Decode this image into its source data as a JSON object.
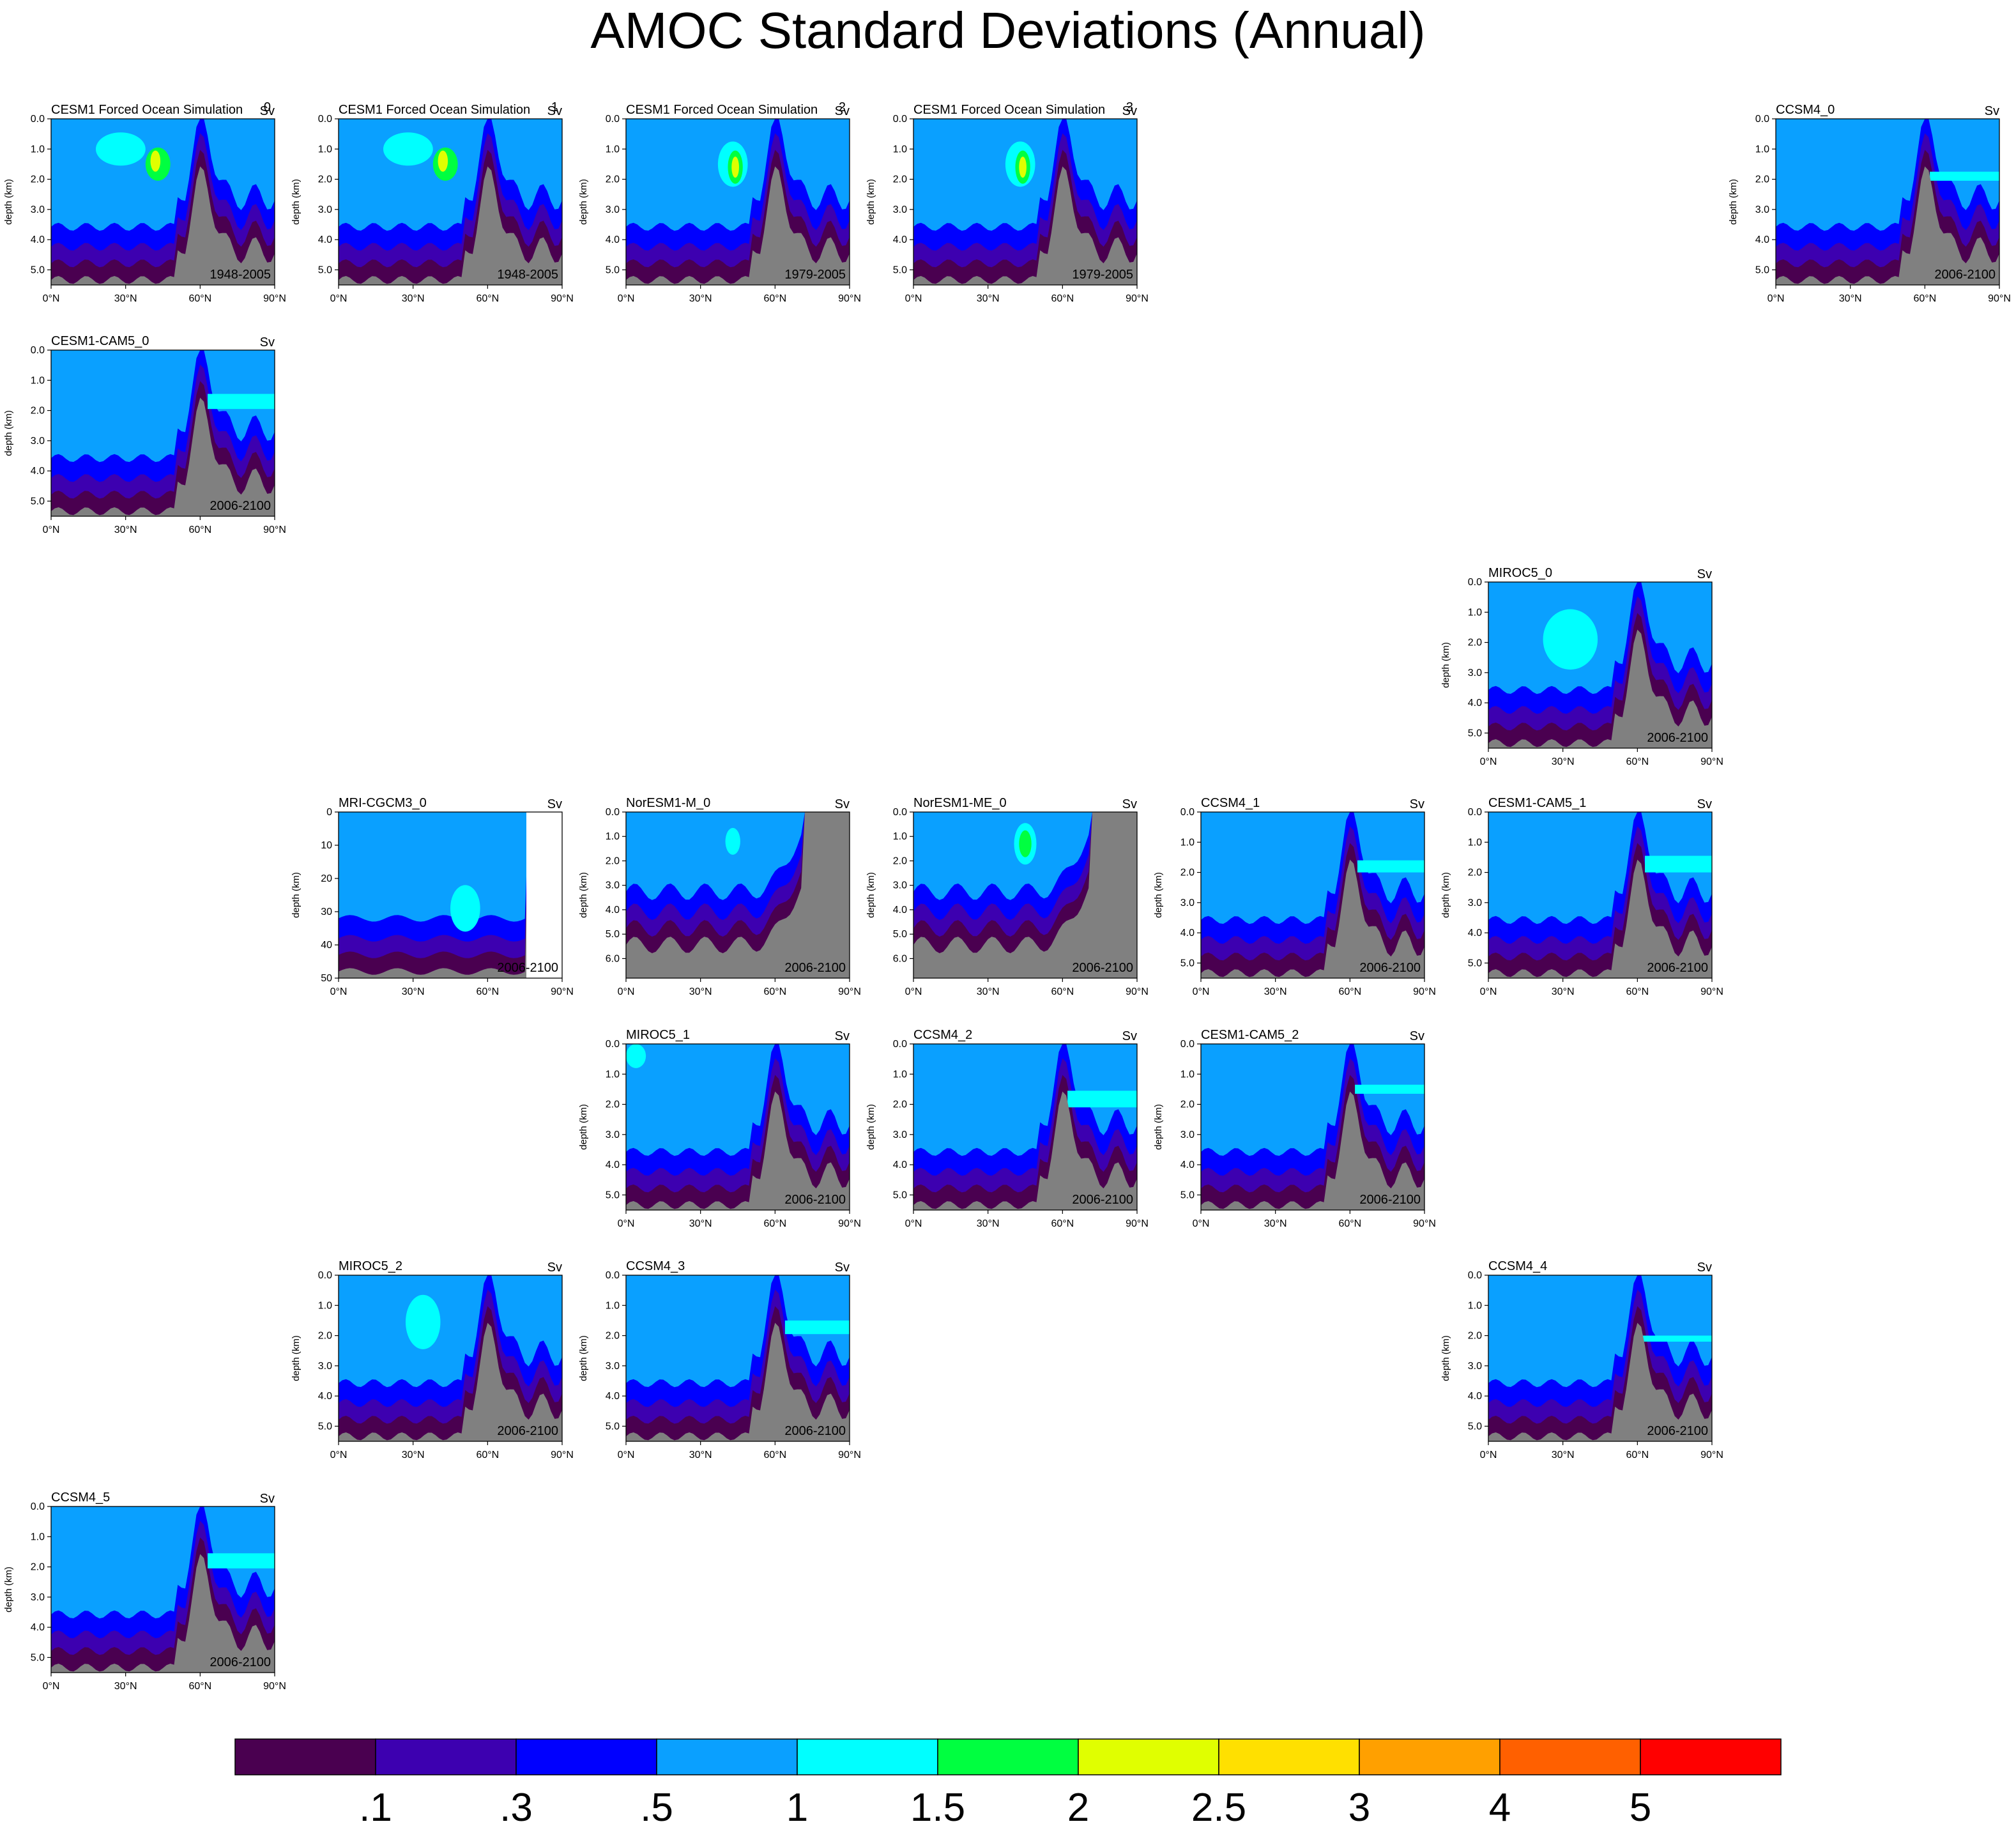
{
  "title": "AMOC Standard Deviations (Annual)",
  "palette": {
    "gray": "#808080",
    "levels": [
      "#4a0050",
      "#3d00b0",
      "#0000ff",
      "#0aa0ff",
      "#00ffff",
      "#00ff40",
      "#e0ff00",
      "#ffe000",
      "#ffa000",
      "#ff6000",
      "#ff0000"
    ]
  },
  "colorbar": {
    "labels": [
      ".1",
      ".3",
      ".5",
      "1",
      "1.5",
      "2",
      "2.5",
      "3",
      "4",
      "5"
    ],
    "colors": [
      "#4a0050",
      "#3d00b0",
      "#0000ff",
      "#0aa0ff",
      "#00ffff",
      "#00ff40",
      "#e0ff00",
      "#ffe000",
      "#ffa000",
      "#ff6000",
      "#ff0000"
    ]
  },
  "chart_data": [
    {
      "type": "heatmap",
      "title": "CESM1 Forced Ocean Simulation",
      "tag": "0",
      "units": "Sv",
      "period": "1948-2005",
      "ylabel": "depth (km)",
      "yticks": [
        "0.0",
        "1.0",
        "2.0",
        "3.0",
        "4.0",
        "5.0"
      ],
      "xticks": [
        "0°N",
        "30°N",
        "60°N",
        "90°N"
      ],
      "xlim": [
        0,
        90
      ],
      "ylim": [
        0,
        5.5
      ],
      "background": 3,
      "bottom": "cesm",
      "blobs": [
        {
          "x": 28,
          "y": 1.0,
          "rx": 10,
          "ry": 0.55,
          "level": 4
        },
        {
          "x": 43,
          "y": 1.5,
          "rx": 5,
          "ry": 0.55,
          "level": 5
        },
        {
          "x": 42,
          "y": 1.4,
          "rx": 2,
          "ry": 0.35,
          "level": 6
        }
      ]
    },
    {
      "type": "heatmap",
      "title": "CESM1 Forced Ocean Simulation",
      "tag": "1",
      "units": "Sv",
      "period": "1948-2005",
      "ylabel": "depth (km)",
      "yticks": [
        "0.0",
        "1.0",
        "2.0",
        "3.0",
        "4.0",
        "5.0"
      ],
      "xticks": [
        "0°N",
        "30°N",
        "60°N",
        "90°N"
      ],
      "xlim": [
        0,
        90
      ],
      "ylim": [
        0,
        5.5
      ],
      "background": 3,
      "bottom": "cesm",
      "blobs": [
        {
          "x": 28,
          "y": 1.0,
          "rx": 10,
          "ry": 0.55,
          "level": 4
        },
        {
          "x": 43,
          "y": 1.5,
          "rx": 5,
          "ry": 0.55,
          "level": 5
        },
        {
          "x": 42,
          "y": 1.4,
          "rx": 2,
          "ry": 0.35,
          "level": 6
        }
      ]
    },
    {
      "type": "heatmap",
      "title": "CESM1 Forced Ocean Simulation",
      "tag": "2",
      "units": "Sv",
      "period": "1979-2005",
      "ylabel": "depth (km)",
      "yticks": [
        "0.0",
        "1.0",
        "2.0",
        "3.0",
        "4.0",
        "5.0"
      ],
      "xticks": [
        "0°N",
        "30°N",
        "60°N",
        "90°N"
      ],
      "xlim": [
        0,
        90
      ],
      "ylim": [
        0,
        5.5
      ],
      "background": 3,
      "bottom": "cesm",
      "blobs": [
        {
          "x": 43,
          "y": 1.5,
          "rx": 6,
          "ry": 0.75,
          "level": 4
        },
        {
          "x": 44,
          "y": 1.6,
          "rx": 3,
          "ry": 0.55,
          "level": 5
        },
        {
          "x": 44,
          "y": 1.6,
          "rx": 1.5,
          "ry": 0.35,
          "level": 6
        }
      ]
    },
    {
      "type": "heatmap",
      "title": "CESM1 Forced Ocean Simulation",
      "tag": "3",
      "units": "Sv",
      "period": "1979-2005",
      "ylabel": "depth (km)",
      "yticks": [
        "0.0",
        "1.0",
        "2.0",
        "3.0",
        "4.0",
        "5.0"
      ],
      "xticks": [
        "0°N",
        "30°N",
        "60°N",
        "90°N"
      ],
      "xlim": [
        0,
        90
      ],
      "ylim": [
        0,
        5.5
      ],
      "background": 3,
      "bottom": "cesm",
      "blobs": [
        {
          "x": 43,
          "y": 1.5,
          "rx": 6,
          "ry": 0.75,
          "level": 4
        },
        {
          "x": 44,
          "y": 1.6,
          "rx": 3,
          "ry": 0.55,
          "level": 5
        },
        {
          "x": 44,
          "y": 1.6,
          "rx": 1.5,
          "ry": 0.35,
          "level": 6
        }
      ]
    },
    {
      "type": "heatmap",
      "title": "CCSM4_0",
      "units": "Sv",
      "period": "2006-2100",
      "ylabel": "depth (km)",
      "yticks": [
        "0.0",
        "1.0",
        "2.0",
        "3.0",
        "4.0",
        "5.0"
      ],
      "xticks": [
        "0°N",
        "30°N",
        "60°N",
        "90°N"
      ],
      "xlim": [
        0,
        90
      ],
      "ylim": [
        0,
        5.5
      ],
      "background": 3,
      "bottom": "standard",
      "band": {
        "x0": 62,
        "x1": 90,
        "y0": 1.75,
        "y1": 2.05
      }
    },
    {
      "type": "heatmap",
      "title": "CESM1-CAM5_0",
      "units": "Sv",
      "period": "2006-2100",
      "ylabel": "depth (km)",
      "yticks": [
        "0.0",
        "1.0",
        "2.0",
        "3.0",
        "4.0",
        "5.0"
      ],
      "xticks": [
        "0°N",
        "30°N",
        "60°N",
        "90°N"
      ],
      "xlim": [
        0,
        90
      ],
      "ylim": [
        0,
        5.5
      ],
      "background": 3,
      "bottom": "standard",
      "band": {
        "x0": 63,
        "x1": 90,
        "y0": 1.45,
        "y1": 1.95
      }
    },
    {
      "type": "heatmap",
      "title": "MIROC5_0",
      "units": "Sv",
      "period": "2006-2100",
      "ylabel": "depth (km)",
      "yticks": [
        "0.0",
        "1.0",
        "2.0",
        "3.0",
        "4.0",
        "5.0"
      ],
      "xticks": [
        "0°N",
        "30°N",
        "60°N",
        "90°N"
      ],
      "xlim": [
        0,
        90
      ],
      "ylim": [
        0,
        5.5
      ],
      "background": 3,
      "bottom": "standard",
      "blobs": [
        {
          "x": 33,
          "y": 1.9,
          "rx": 11,
          "ry": 1.0,
          "level": 4
        }
      ]
    },
    {
      "type": "heatmap",
      "title": "MRI-CGCM3_0",
      "units": "Sv",
      "period": "2006-2100",
      "ylabel": "depth (km)",
      "yticks": [
        "0",
        "10",
        "20",
        "30",
        "40",
        "50"
      ],
      "xticks": [
        "0°N",
        "30°N",
        "60°N",
        "90°N"
      ],
      "xlim": [
        0,
        90
      ],
      "ylim": [
        0,
        50
      ],
      "background": 3,
      "bottom": "mri",
      "blobs": [
        {
          "x": 51,
          "y": 29,
          "rx": 6,
          "ry": 7,
          "level": 4
        }
      ]
    },
    {
      "type": "heatmap",
      "title": "NorESM1-M_0",
      "units": "Sv",
      "period": "2006-2100",
      "ylabel": "depth (km)",
      "yticks": [
        "0.0",
        "1.0",
        "2.0",
        "3.0",
        "4.0",
        "5.0",
        "6.0"
      ],
      "xticks": [
        "0°N",
        "30°N",
        "60°N",
        "90°N"
      ],
      "xlim": [
        0,
        90
      ],
      "ylim": [
        0,
        6.8
      ],
      "background": 3,
      "bottom": "noresm",
      "blobs": [
        {
          "x": 43,
          "y": 1.2,
          "rx": 3,
          "ry": 0.55,
          "level": 4
        }
      ]
    },
    {
      "type": "heatmap",
      "title": "NorESM1-ME_0",
      "units": "Sv",
      "period": "2006-2100",
      "ylabel": "depth (km)",
      "yticks": [
        "0.0",
        "1.0",
        "2.0",
        "3.0",
        "4.0",
        "5.0",
        "6.0"
      ],
      "xticks": [
        "0°N",
        "30°N",
        "60°N",
        "90°N"
      ],
      "xlim": [
        0,
        90
      ],
      "ylim": [
        0,
        6.8
      ],
      "background": 3,
      "bottom": "noresm",
      "blobs": [
        {
          "x": 45,
          "y": 1.3,
          "rx": 4.5,
          "ry": 0.85,
          "level": 4
        },
        {
          "x": 45,
          "y": 1.3,
          "rx": 2.5,
          "ry": 0.55,
          "level": 5
        }
      ]
    },
    {
      "type": "heatmap",
      "title": "CCSM4_1",
      "units": "Sv",
      "period": "2006-2100",
      "ylabel": "depth (km)",
      "yticks": [
        "0.0",
        "1.0",
        "2.0",
        "3.0",
        "4.0",
        "5.0"
      ],
      "xticks": [
        "0°N",
        "30°N",
        "60°N",
        "90°N"
      ],
      "xlim": [
        0,
        90
      ],
      "ylim": [
        0,
        5.5
      ],
      "background": 3,
      "bottom": "standard",
      "band": {
        "x0": 63,
        "x1": 90,
        "y0": 1.6,
        "y1": 2.0
      }
    },
    {
      "type": "heatmap",
      "title": "CESM1-CAM5_1",
      "units": "Sv",
      "period": "2006-2100",
      "ylabel": "depth (km)",
      "yticks": [
        "0.0",
        "1.0",
        "2.0",
        "3.0",
        "4.0",
        "5.0"
      ],
      "xticks": [
        "0°N",
        "30°N",
        "60°N",
        "90°N"
      ],
      "xlim": [
        0,
        90
      ],
      "ylim": [
        0,
        5.5
      ],
      "background": 3,
      "bottom": "standard",
      "band": {
        "x0": 63,
        "x1": 90,
        "y0": 1.45,
        "y1": 2.0
      }
    },
    {
      "type": "heatmap",
      "title": "MIROC5_1",
      "units": "Sv",
      "period": "2006-2100",
      "ylabel": "depth (km)",
      "yticks": [
        "0.0",
        "1.0",
        "2.0",
        "3.0",
        "4.0",
        "5.0"
      ],
      "xticks": [
        "0°N",
        "30°N",
        "60°N",
        "90°N"
      ],
      "xlim": [
        0,
        90
      ],
      "ylim": [
        0,
        5.5
      ],
      "background": 3,
      "bottom": "standard",
      "blobs": [
        {
          "x": 4,
          "y": 0.4,
          "rx": 4,
          "ry": 0.4,
          "level": 4
        }
      ]
    },
    {
      "type": "heatmap",
      "title": "CCSM4_2",
      "units": "Sv",
      "period": "2006-2100",
      "ylabel": "depth (km)",
      "yticks": [
        "0.0",
        "1.0",
        "2.0",
        "3.0",
        "4.0",
        "5.0"
      ],
      "xticks": [
        "0°N",
        "30°N",
        "60°N",
        "90°N"
      ],
      "xlim": [
        0,
        90
      ],
      "ylim": [
        0,
        5.5
      ],
      "background": 3,
      "bottom": "standard",
      "band": {
        "x0": 62,
        "x1": 90,
        "y0": 1.55,
        "y1": 2.1
      }
    },
    {
      "type": "heatmap",
      "title": "CESM1-CAM5_2",
      "units": "Sv",
      "period": "2006-2100",
      "ylabel": "depth (km)",
      "yticks": [
        "0.0",
        "1.0",
        "2.0",
        "3.0",
        "4.0",
        "5.0"
      ],
      "xticks": [
        "0°N",
        "30°N",
        "60°N",
        "90°N"
      ],
      "xlim": [
        0,
        90
      ],
      "ylim": [
        0,
        5.5
      ],
      "background": 3,
      "bottom": "standard",
      "band": {
        "x0": 62,
        "x1": 90,
        "y0": 1.35,
        "y1": 1.65
      }
    },
    {
      "type": "heatmap",
      "title": "MIROC5_2",
      "units": "Sv",
      "period": "2006-2100",
      "ylabel": "depth (km)",
      "yticks": [
        "0.0",
        "1.0",
        "2.0",
        "3.0",
        "4.0",
        "5.0"
      ],
      "xticks": [
        "0°N",
        "30°N",
        "60°N",
        "90°N"
      ],
      "xlim": [
        0,
        90
      ],
      "ylim": [
        0,
        5.5
      ],
      "background": 3,
      "bottom": "standard",
      "blobs": [
        {
          "x": 34,
          "y": 1.55,
          "rx": 7,
          "ry": 0.9,
          "level": 4
        }
      ]
    },
    {
      "type": "heatmap",
      "title": "CCSM4_3",
      "units": "Sv",
      "period": "2006-2100",
      "ylabel": "depth (km)",
      "yticks": [
        "0.0",
        "1.0",
        "2.0",
        "3.0",
        "4.0",
        "5.0"
      ],
      "xticks": [
        "0°N",
        "30°N",
        "60°N",
        "90°N"
      ],
      "xlim": [
        0,
        90
      ],
      "ylim": [
        0,
        5.5
      ],
      "background": 3,
      "bottom": "standard",
      "band": {
        "x0": 64,
        "x1": 90,
        "y0": 1.5,
        "y1": 1.95
      }
    },
    {
      "type": "heatmap",
      "title": "CCSM4_4",
      "units": "Sv",
      "period": "2006-2100",
      "ylabel": "depth (km)",
      "yticks": [
        "0.0",
        "1.0",
        "2.0",
        "3.0",
        "4.0",
        "5.0"
      ],
      "xticks": [
        "0°N",
        "30°N",
        "60°N",
        "90°N"
      ],
      "xlim": [
        0,
        90
      ],
      "ylim": [
        0,
        5.5
      ],
      "background": 3,
      "bottom": "standard",
      "band": {
        "x0": 62,
        "x1": 90,
        "y0": 2.0,
        "y1": 2.2
      }
    },
    {
      "type": "heatmap",
      "title": "CCSM4_5",
      "units": "Sv",
      "period": "2006-2100",
      "ylabel": "depth (km)",
      "yticks": [
        "0.0",
        "1.0",
        "2.0",
        "3.0",
        "4.0",
        "5.0"
      ],
      "xticks": [
        "0°N",
        "30°N",
        "60°N",
        "90°N"
      ],
      "xlim": [
        0,
        90
      ],
      "ylim": [
        0,
        5.5
      ],
      "background": 3,
      "bottom": "standard",
      "band": {
        "x0": 63,
        "x1": 90,
        "y0": 1.55,
        "y1": 2.05
      }
    }
  ]
}
